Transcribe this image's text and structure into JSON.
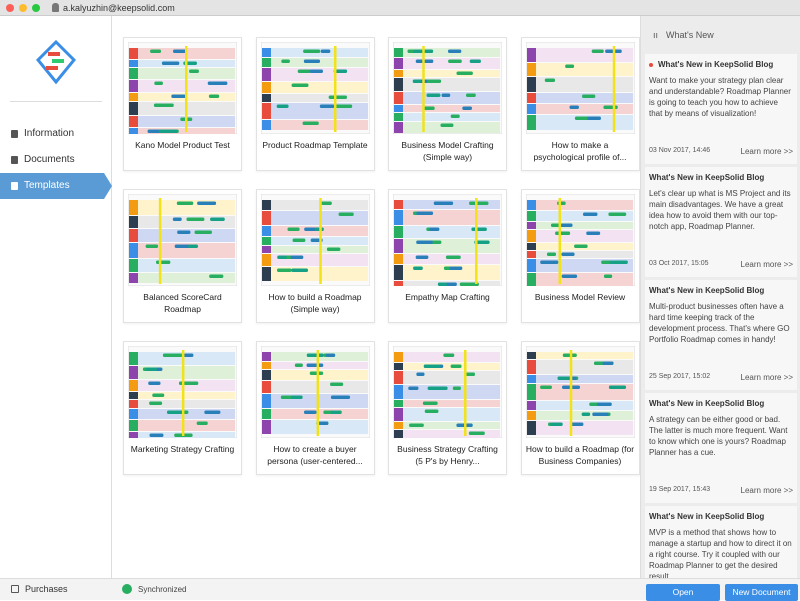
{
  "titlebar": {
    "user": "a.kalyuzhin@keepsolid.com"
  },
  "sidebar": {
    "items": [
      "Information",
      "Documents",
      "Templates"
    ],
    "active": "Templates",
    "footer": "Purchases"
  },
  "templates": [
    "Kano Model Product Test",
    "Product Roadmap Template",
    "Business Model Crafting (Simple way)",
    "How to make a psychological profile of...",
    "Balanced ScoreCard Roadmap",
    "How to build a Roadmap (Simple way)",
    "Empathy Map Crafting",
    "Business Model Review",
    "Marketing Strategy Crafting",
    "How to create a buyer persona (user-centered...",
    "Business Strategy Crafting (5 P's by Henry...",
    "How to build a Roadmap (for Business Companies)"
  ],
  "news": {
    "header": "What's New",
    "items": [
      {
        "title": "What's New in KeepSolid Blog",
        "text": "Want to make your strategy plan clear and understandable? Roadmap Planner is going to teach you how to achieve that by means of visualization!",
        "date": "03 Nov 2017, 14:46",
        "link": "Learn more >>"
      },
      {
        "title": "What's New in KeepSolid Blog",
        "text": "Let's clear up what is MS Project and its main disadvantages. We have a great idea how to avoid them with our top-notch app, Roadmap Planner.",
        "date": "03 Oct 2017, 15:05",
        "link": "Learn more >>"
      },
      {
        "title": "What's New in KeepSolid Blog",
        "text": "Multi-product businesses often have a hard time keeping track of the development process. That's where GO Portfolio Roadmap comes in handy!",
        "date": "25 Sep 2017, 15:02",
        "link": "Learn more >>"
      },
      {
        "title": "What's New in KeepSolid Blog",
        "text": "A strategy can be either good or bad. The latter is much more frequent. Want to know which one is yours? Roadmap Planner has a cue.",
        "date": "19 Sep 2017, 15:43",
        "link": "Learn more >>"
      },
      {
        "title": "What's New in KeepSolid Blog",
        "text": "MVP is a method that shows how to manage a startup and how to direct it on a right course. Try it coupled with our Roadmap Planner to get the desired result."
      }
    ]
  },
  "footer": {
    "status": "Synchronized",
    "open": "Open",
    "new_document": "New Document"
  }
}
